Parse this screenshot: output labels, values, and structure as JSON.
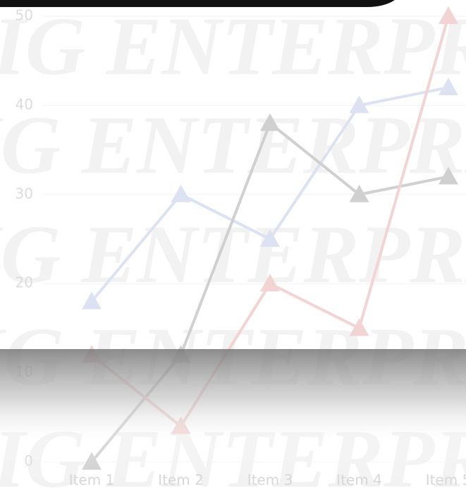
{
  "watermark": "IG ENTERPRI",
  "chart_data": {
    "type": "line",
    "categories": [
      "Item 1",
      "Item 2",
      "Item 3",
      "Item 4",
      "Item 5"
    ],
    "series": [
      {
        "color": "#dde2f2",
        "values": [
          18,
          30,
          25,
          40,
          42
        ]
      },
      {
        "color": "#d0d0d0",
        "values": [
          0,
          12,
          38,
          30,
          32
        ]
      },
      {
        "color": "#f2d4d4",
        "values": [
          12,
          4,
          20,
          15,
          50
        ]
      }
    ],
    "ylim": [
      0,
      50
    ],
    "yticks": [
      0,
      10,
      20,
      30,
      40,
      50
    ],
    "grid": true
  }
}
